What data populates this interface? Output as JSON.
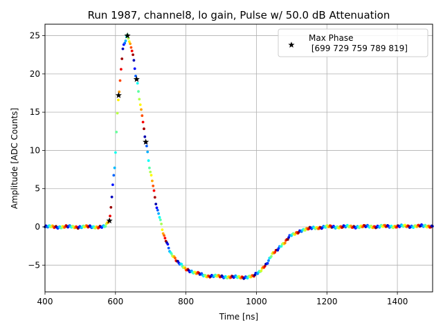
{
  "chart_data": {
    "type": "scatter",
    "title": "Run 1987, channel8, lo gain, Pulse w/ 50.0 dB Attenuation",
    "xlabel": "Time [ns]",
    "ylabel": "Amplitude [ADC Counts]",
    "xlim": [
      400,
      1500
    ],
    "ylim": [
      -8.5,
      26.5
    ],
    "xticks": [
      400,
      600,
      800,
      1000,
      1200,
      1400
    ],
    "yticks": [
      -5,
      0,
      5,
      10,
      15,
      20,
      25
    ],
    "grid": true,
    "legend_position": "top-right",
    "colormap": "jet",
    "series": [
      {
        "name": "Max Phase\n [699 729 759 789 819]",
        "marker": "star",
        "color": "#000000",
        "points": [
          {
            "x": 583,
            "y": 0.8
          },
          {
            "x": 609,
            "y": 17.2
          },
          {
            "x": 634,
            "y": 25.0
          },
          {
            "x": 660,
            "y": 19.3
          },
          {
            "x": 686,
            "y": 11.1
          }
        ]
      }
    ],
    "waveform_samples": {
      "description": "pulse waveform samples colored by phase (jet colormap)",
      "x_start": 400,
      "x_end": 1500,
      "x_step": 2.6
    }
  },
  "legend": {
    "label_line1": "Max Phase",
    "label_line2": " [699 729 759 789 819]"
  }
}
